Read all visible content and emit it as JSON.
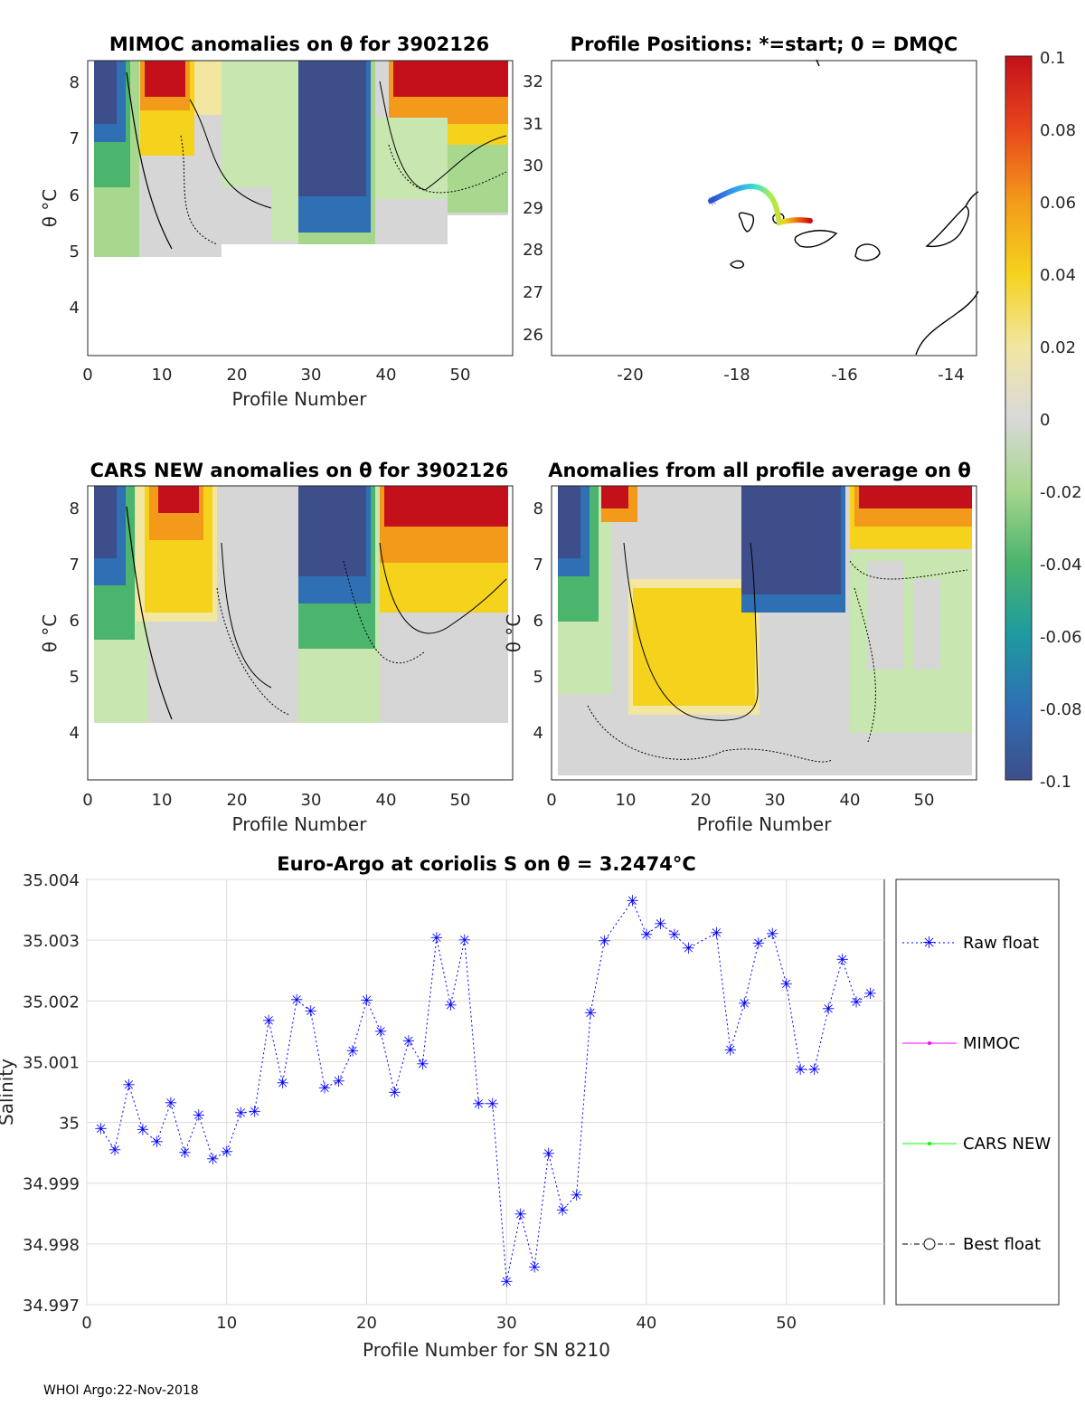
{
  "footer": "WHOI Argo:22-Nov-2018",
  "panels": {
    "mimoc": {
      "title": "MIMOC anomalies on θ  for 3902126",
      "xlabel": "Profile Number",
      "ylabel": "θ °C",
      "xticks": [
        "0",
        "10",
        "20",
        "30",
        "40",
        "50"
      ],
      "yticks": [
        "4",
        "5",
        "6",
        "7",
        "8"
      ]
    },
    "positions": {
      "title": "Profile Positions: *=start; 0 = DMQC",
      "xticks": [
        "-20",
        "-18",
        "-16",
        "-14"
      ],
      "yticks": [
        "26",
        "27",
        "28",
        "29",
        "30",
        "31",
        "32"
      ]
    },
    "cars": {
      "title": "CARS NEW anomalies on θ for 3902126",
      "xlabel": "Profile Number",
      "ylabel": "θ °C",
      "xticks": [
        "0",
        "10",
        "20",
        "30",
        "40",
        "50"
      ],
      "yticks": [
        "4",
        "5",
        "6",
        "7",
        "8"
      ]
    },
    "average": {
      "title": "Anomalies from all profile average on θ",
      "xlabel": "Profile Number",
      "ylabel": "θ °C",
      "xticks": [
        "0",
        "10",
        "20",
        "30",
        "40",
        "50"
      ],
      "yticks": [
        "4",
        "5",
        "6",
        "7",
        "8"
      ]
    },
    "colorbar": {
      "ticks": [
        "0.1",
        "0.08",
        "0.06",
        "0.04",
        "0.02",
        "0",
        "-0.02",
        "-0.04",
        "-0.06",
        "-0.08",
        "-0.1"
      ]
    }
  },
  "chart_data": {
    "type": "line",
    "title": "Euro-Argo at coriolis S on θ = 3.2474°C",
    "xlabel": "Profile Number for SN 8210",
    "ylabel": "Salinity",
    "xlim": [
      0,
      57
    ],
    "ylim": [
      34.997,
      35.004
    ],
    "xticks": [
      "0",
      "10",
      "20",
      "30",
      "40",
      "50"
    ],
    "yticks": [
      "35.004",
      "35.003",
      "35.002",
      "35.001",
      "35",
      "34.999",
      "34.998",
      "34.997"
    ],
    "series": [
      {
        "name": "Raw float",
        "color": "#0000ff",
        "x": [
          1,
          2,
          3,
          4,
          5,
          6,
          7,
          8,
          9,
          10,
          11,
          12,
          13,
          14,
          15,
          16,
          17,
          18,
          19,
          20,
          21,
          22,
          23,
          24,
          25,
          26,
          27,
          28,
          29,
          30,
          31,
          32,
          33,
          34,
          35,
          36,
          37,
          38,
          39,
          40,
          41,
          42,
          43,
          44,
          45,
          46,
          47,
          48,
          49,
          50,
          51,
          52,
          53,
          54,
          55,
          56
        ],
        "values": [
          34.9999,
          34.99955,
          35.00062,
          34.99988,
          34.99968,
          35.00032,
          34.9995,
          35.00012,
          34.9994,
          34.99952,
          35.00016,
          35.00018,
          35.00168,
          35.00065,
          35.00202,
          35.00183,
          35.00057,
          35.00068,
          35.00118,
          35.00201,
          35.0015,
          35.00049,
          35.00134,
          35.00096,
          35.00304,
          35.00193,
          35.003,
          35.00031,
          35.00031,
          34.99738,
          34.99849,
          34.99762,
          34.99949,
          34.99856,
          34.9988,
          35.0018,
          35.00299,
          null,
          35.00365,
          35.00309,
          35.00327,
          35.00309,
          35.00287,
          null,
          35.00312,
          35.00119,
          35.00196,
          35.00295,
          35.00311,
          35.00228,
          35.00087,
          35.00087,
          35.00187,
          35.00268,
          35.00198,
          35.00212
        ]
      },
      {
        "name": "MIMOC",
        "color": "#ff00ff",
        "x": [],
        "values": []
      },
      {
        "name": "CARS NEW",
        "color": "#00ff00",
        "x": [],
        "values": []
      },
      {
        "name": "Best float",
        "color": "#000000",
        "x": [],
        "values": []
      }
    ]
  }
}
